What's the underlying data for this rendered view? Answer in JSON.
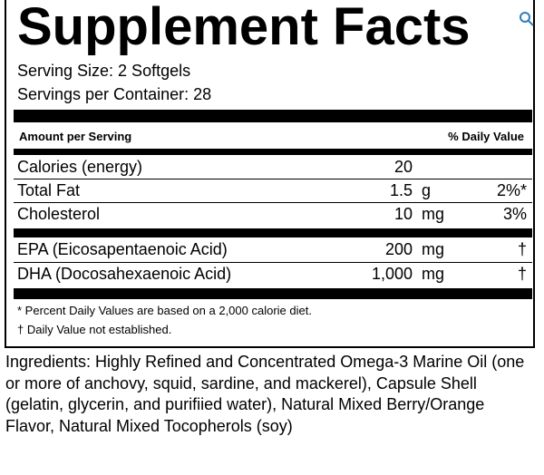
{
  "panel": {
    "title": "Supplement Facts",
    "serving_size": "Serving Size: 2 Softgels",
    "servings_per_container": "Servings per Container: 28",
    "header_amount": "Amount per Serving",
    "header_dv": "% Daily Value",
    "rows": [
      {
        "name": "Calories (energy)",
        "amount": "20",
        "unit": "",
        "dv": ""
      },
      {
        "name": "Total Fat",
        "amount": "1.5",
        "unit": "g",
        "dv": "2%*"
      },
      {
        "name": "Cholesterol",
        "amount": "10",
        "unit": "mg",
        "dv": "3%"
      },
      {
        "name": "EPA (Eicosapentaenoic Acid)",
        "amount": "200",
        "unit": "mg",
        "dv": "†"
      },
      {
        "name": "DHA (Docosahexaenoic Acid)",
        "amount": "1,000",
        "unit": "mg",
        "dv": "†"
      }
    ],
    "footnote_1": "* Percent Daily Values are based on a 2,000 calorie diet.",
    "footnote_2": "† Daily Value not established."
  },
  "ingredients": "Ingredients: Highly Refined and Concentrated Omega-3 Marine Oil (one or more of anchovy, squid, sardine, and mackerel), Capsule Shell (gelatin, glycerin, and purifiied water), Natural Mixed Berry/Orange Flavor, Natural Mixed Tocopherols (soy)",
  "zoom_icon": "magnifier-icon",
  "accent_color": "#2a7fbf"
}
